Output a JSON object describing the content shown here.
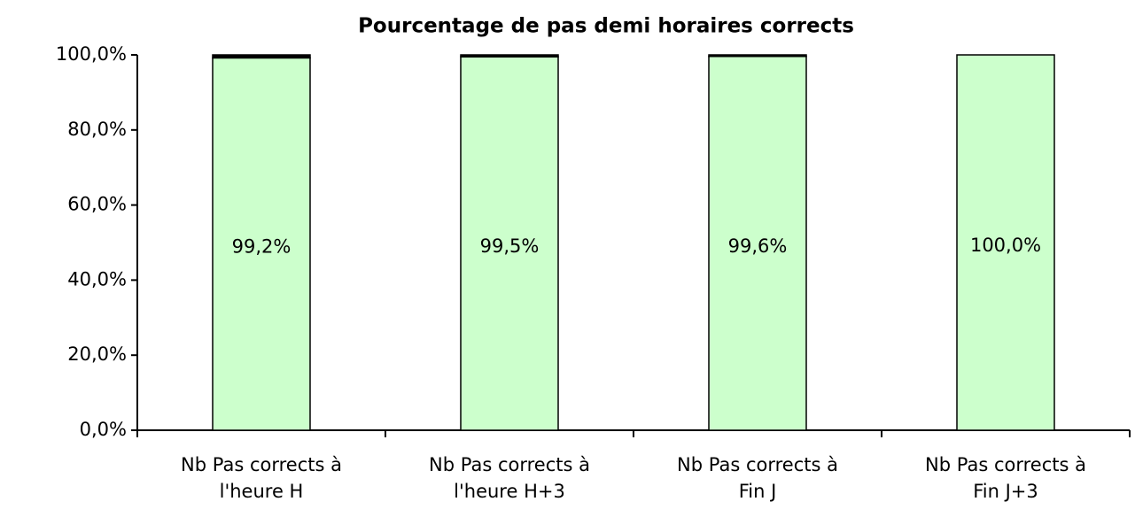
{
  "chart_data": {
    "type": "stacked_bar",
    "title": "Pourcentage de pas demi horaires corrects",
    "categories": [
      [
        "Nb Pas corrects à",
        "l'heure H"
      ],
      [
        "Nb Pas corrects à",
        "l'heure H+3"
      ],
      [
        "Nb Pas corrects à",
        "Fin J"
      ],
      [
        "Nb Pas corrects à",
        "Fin J+3"
      ]
    ],
    "series": [
      {
        "color": "#ccffcc",
        "values": [
          99.2,
          99.5,
          99.6,
          100
        ],
        "value_labels": [
          "99,2%",
          "99,5%",
          "99,6%",
          "100,0%"
        ]
      },
      {
        "color": "#000000",
        "values": [
          0.8,
          0.5,
          0.4,
          0
        ]
      }
    ],
    "ylim": [
      0,
      100
    ],
    "yticks": [
      {
        "value": 0,
        "label": "0,0%"
      },
      {
        "value": 20,
        "label": "20,0%"
      },
      {
        "value": 40,
        "label": "40,0%"
      },
      {
        "value": 60,
        "label": "60,0%"
      },
      {
        "value": 80,
        "label": "80,0%"
      },
      {
        "value": 100,
        "label": "100,0%"
      }
    ],
    "grid": false
  }
}
